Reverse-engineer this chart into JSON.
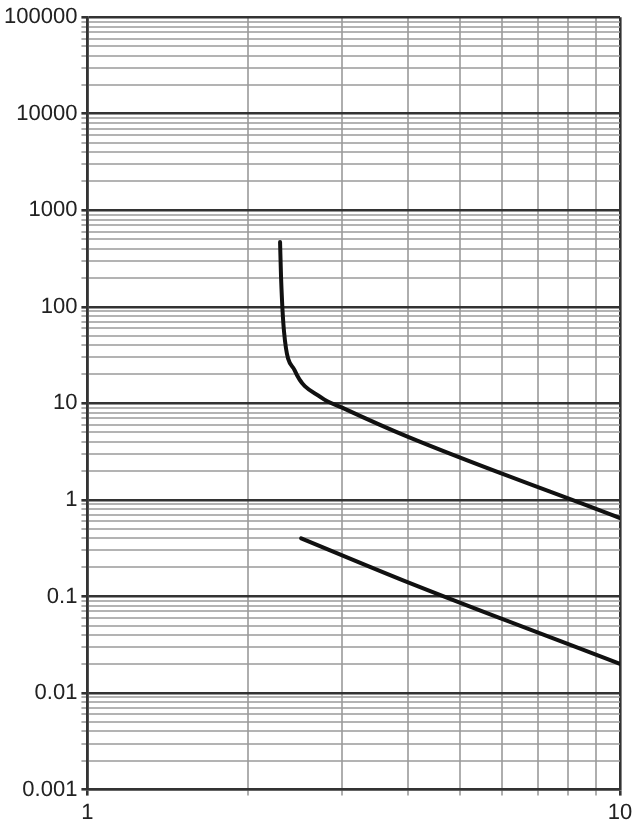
{
  "chart_data": {
    "type": "line",
    "log": "xy",
    "grid": true,
    "xlim": [
      1,
      10
    ],
    "ylim": [
      0.001,
      100000
    ],
    "xticks": [
      1,
      {
        "value": 2,
        "label": null
      },
      {
        "value": 3,
        "label": null
      },
      {
        "value": 4,
        "label": null
      },
      {
        "value": 5,
        "label": null
      },
      {
        "value": 6,
        "label": null
      },
      {
        "value": 7,
        "label": null
      },
      {
        "value": 8,
        "label": null
      },
      {
        "value": 9,
        "label": null
      },
      10
    ],
    "yticks": [
      0.001,
      {
        "value": 0.002,
        "label": null
      },
      {
        "value": 0.003,
        "label": null
      },
      {
        "value": 0.004,
        "label": null
      },
      {
        "value": 0.005,
        "label": null
      },
      {
        "value": 0.006,
        "label": null
      },
      {
        "value": 0.007,
        "label": null
      },
      {
        "value": 0.008,
        "label": null
      },
      {
        "value": 0.009,
        "label": null
      },
      0.01,
      {
        "value": 0.02,
        "label": null
      },
      {
        "value": 0.03,
        "label": null
      },
      {
        "value": 0.04,
        "label": null
      },
      {
        "value": 0.05,
        "label": null
      },
      {
        "value": 0.06,
        "label": null
      },
      {
        "value": 0.07,
        "label": null
      },
      {
        "value": 0.08,
        "label": null
      },
      {
        "value": 0.09,
        "label": null
      },
      0.1,
      {
        "value": 0.2,
        "label": null
      },
      {
        "value": 0.3,
        "label": null
      },
      {
        "value": 0.4,
        "label": null
      },
      {
        "value": 0.5,
        "label": null
      },
      {
        "value": 0.6,
        "label": null
      },
      {
        "value": 0.7,
        "label": null
      },
      {
        "value": 0.8,
        "label": null
      },
      {
        "value": 0.9,
        "label": null
      },
      1,
      {
        "value": 2,
        "label": null
      },
      {
        "value": 3,
        "label": null
      },
      {
        "value": 4,
        "label": null
      },
      {
        "value": 5,
        "label": null
      },
      {
        "value": 6,
        "label": null
      },
      {
        "value": 7,
        "label": null
      },
      {
        "value": 8,
        "label": null
      },
      {
        "value": 9,
        "label": null
      },
      10,
      {
        "value": 20,
        "label": null
      },
      {
        "value": 30,
        "label": null
      },
      {
        "value": 40,
        "label": null
      },
      {
        "value": 50,
        "label": null
      },
      {
        "value": 60,
        "label": null
      },
      {
        "value": 70,
        "label": null
      },
      {
        "value": 80,
        "label": null
      },
      {
        "value": 90,
        "label": null
      },
      100,
      {
        "value": 200,
        "label": null
      },
      {
        "value": 300,
        "label": null
      },
      {
        "value": 400,
        "label": null
      },
      {
        "value": 500,
        "label": null
      },
      {
        "value": 600,
        "label": null
      },
      {
        "value": 700,
        "label": null
      },
      {
        "value": 800,
        "label": null
      },
      {
        "value": 900,
        "label": null
      },
      1000,
      {
        "value": 2000,
        "label": null
      },
      {
        "value": 3000,
        "label": null
      },
      {
        "value": 4000,
        "label": null
      },
      {
        "value": 5000,
        "label": null
      },
      {
        "value": 6000,
        "label": null
      },
      {
        "value": 7000,
        "label": null
      },
      {
        "value": 8000,
        "label": null
      },
      {
        "value": 9000,
        "label": null
      },
      10000,
      {
        "value": 20000,
        "label": null
      },
      {
        "value": 30000,
        "label": null
      },
      {
        "value": 40000,
        "label": null
      },
      {
        "value": 50000,
        "label": null
      },
      {
        "value": 60000,
        "label": null
      },
      {
        "value": 70000,
        "label": null
      },
      {
        "value": 80000,
        "label": null
      },
      {
        "value": 90000,
        "label": null
      },
      100000
    ],
    "series": [
      {
        "color": "#111111",
        "x": [
          2.3,
          2.31,
          2.34,
          2.45,
          2.75,
          3,
          4,
          10
        ],
        "values": [
          470,
          200,
          55,
          22,
          11.5,
          9.1,
          4.5,
          0.65
        ]
      },
      {
        "color": "#111111",
        "x": [
          2.52,
          4,
          10
        ],
        "values": [
          0.4,
          0.14,
          0.02
        ]
      }
    ]
  }
}
